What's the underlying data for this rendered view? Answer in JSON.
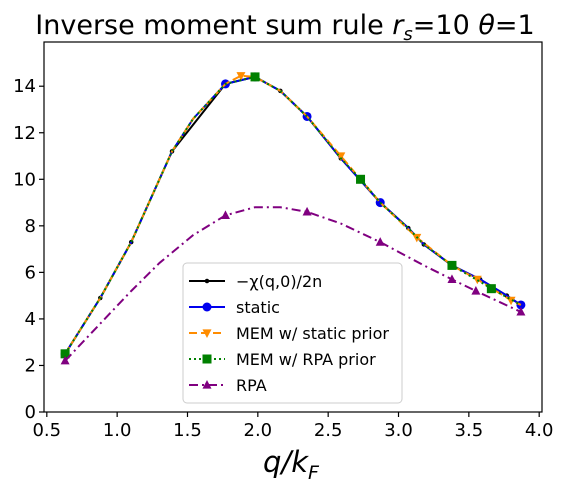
{
  "chart_data": {
    "type": "line",
    "title": "Inverse moment sum rule r_s=10 θ=1",
    "title_parts": {
      "main": "Inverse moment sum rule ",
      "rs": "r",
      "rs_sub": "s",
      "rs_val": "=10 ",
      "theta": "θ",
      "theta_val": "=1"
    },
    "xlabel": "q/k_F",
    "xlabel_parts": {
      "q": "q/k",
      "sub": "F"
    },
    "ylabel": "",
    "xlim": [
      0.48,
      4.02
    ],
    "ylim": [
      0,
      15.9
    ],
    "xticks": [
      0.5,
      1.0,
      1.5,
      2.0,
      2.5,
      3.0,
      3.5,
      4.0
    ],
    "xtick_labels": [
      "0.5",
      "1.0",
      "1.5",
      "2.0",
      "2.5",
      "3.0",
      "3.5",
      "4.0"
    ],
    "yticks": [
      0,
      2,
      4,
      6,
      8,
      10,
      12,
      14
    ],
    "ytick_labels": [
      "0",
      "2",
      "4",
      "6",
      "8",
      "10",
      "12",
      "14"
    ],
    "grid": false,
    "legend_position": "lower-center",
    "series": [
      {
        "name": "−χ(q,0)/2n",
        "color": "#000000",
        "dash": "solid",
        "marker": "dot",
        "x": [
          0.63,
          0.88,
          1.1,
          1.39,
          1.77,
          1.98,
          2.16,
          2.35,
          2.59,
          2.87,
          3.07,
          3.18,
          3.38,
          3.58,
          3.77,
          3.87
        ],
        "y": [
          2.5,
          4.9,
          7.3,
          11.2,
          14.1,
          14.4,
          13.8,
          12.7,
          10.9,
          9.0,
          7.9,
          7.2,
          6.3,
          5.7,
          5.0,
          4.6
        ],
        "marker_x": [
          0.63,
          0.88,
          1.1,
          1.39,
          1.77,
          1.98,
          2.16,
          2.35,
          2.59,
          2.87,
          3.07,
          3.18,
          3.38,
          3.58,
          3.77,
          3.87
        ],
        "marker_y": [
          2.5,
          4.9,
          7.3,
          11.2,
          14.1,
          14.4,
          13.8,
          12.7,
          10.9,
          9.0,
          7.9,
          7.2,
          6.3,
          5.7,
          5.0,
          4.6
        ]
      },
      {
        "name": "static",
        "color": "#0000ee",
        "dash": "solid",
        "marker": "circle",
        "x": [
          0.63,
          0.88,
          1.1,
          1.39,
          1.54,
          1.77,
          1.98,
          2.16,
          2.35,
          2.59,
          2.87,
          3.07,
          3.18,
          3.38,
          3.58,
          3.77,
          3.87
        ],
        "y": [
          2.5,
          4.9,
          7.3,
          11.2,
          12.6,
          14.1,
          14.4,
          13.8,
          12.7,
          10.9,
          9.0,
          7.9,
          7.2,
          6.3,
          5.7,
          5.0,
          4.6
        ],
        "marker_x": [
          0.63,
          1.77,
          1.98,
          2.35,
          2.87,
          3.87
        ],
        "marker_y": [
          2.5,
          14.1,
          14.4,
          12.7,
          9.0,
          4.6
        ]
      },
      {
        "name": "MEM w/ static prior",
        "color": "#ff8c00",
        "dash": "dashed",
        "marker": "triangle-down",
        "x": [
          0.63,
          0.88,
          1.1,
          1.39,
          1.54,
          1.77,
          1.88,
          1.98,
          2.16,
          2.35,
          2.59,
          2.87,
          3.13,
          3.38,
          3.56,
          3.8,
          3.87
        ],
        "y": [
          2.5,
          4.9,
          7.3,
          11.2,
          12.6,
          14.1,
          14.45,
          14.4,
          13.8,
          12.7,
          11.0,
          9.0,
          7.5,
          6.3,
          5.7,
          4.8,
          4.6
        ],
        "marker_x": [
          0.63,
          1.88,
          2.59,
          3.13,
          3.56,
          3.8
        ],
        "marker_y": [
          2.5,
          14.45,
          11.0,
          7.5,
          5.7,
          4.8
        ]
      },
      {
        "name": "MEM w/ RPA prior",
        "color": "#008000",
        "dash": "dotted",
        "marker": "square",
        "x": [
          0.63,
          0.88,
          1.1,
          1.39,
          1.54,
          1.77,
          1.98,
          2.16,
          2.35,
          2.59,
          2.73,
          2.87,
          3.07,
          3.18,
          3.38,
          3.58,
          3.66,
          3.87
        ],
        "y": [
          2.5,
          4.9,
          7.3,
          11.2,
          12.6,
          14.1,
          14.4,
          13.8,
          12.7,
          10.9,
          10.0,
          9.0,
          7.9,
          7.2,
          6.3,
          5.6,
          5.3,
          4.6
        ],
        "marker_x": [
          0.63,
          1.98,
          2.73,
          3.38,
          3.66
        ],
        "marker_y": [
          2.5,
          14.4,
          10.0,
          6.3,
          5.3
        ]
      },
      {
        "name": "RPA",
        "color": "#800080",
        "dash": "dashdot",
        "marker": "triangle-up",
        "x": [
          0.63,
          0.88,
          1.1,
          1.3,
          1.54,
          1.77,
          1.98,
          2.16,
          2.35,
          2.59,
          2.87,
          3.18,
          3.38,
          3.55,
          3.87
        ],
        "y": [
          2.2,
          3.8,
          5.2,
          6.4,
          7.6,
          8.45,
          8.8,
          8.8,
          8.6,
          8.1,
          7.3,
          6.3,
          5.7,
          5.2,
          4.3
        ],
        "marker_x": [
          0.63,
          1.77,
          2.35,
          2.87,
          3.38,
          3.55,
          3.87
        ],
        "marker_y": [
          2.2,
          8.45,
          8.6,
          7.3,
          5.7,
          5.2,
          4.3
        ]
      }
    ]
  }
}
